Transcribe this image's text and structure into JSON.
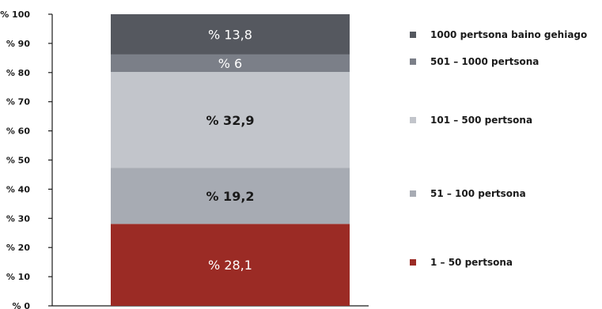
{
  "chart_data": {
    "type": "bar",
    "stacked": true,
    "title": "",
    "xlabel": "",
    "ylabel": "",
    "ylim": [
      0,
      100
    ],
    "y_ticks": [
      {
        "value": 0,
        "label": "% 0"
      },
      {
        "value": 10,
        "label": "% 10"
      },
      {
        "value": 20,
        "label": "% 20"
      },
      {
        "value": 30,
        "label": "% 30"
      },
      {
        "value": 40,
        "label": "% 40"
      },
      {
        "value": 50,
        "label": "% 50"
      },
      {
        "value": 60,
        "label": "% 60"
      },
      {
        "value": 70,
        "label": "% 70"
      },
      {
        "value": 80,
        "label": "% 80"
      },
      {
        "value": 90,
        "label": "% 90"
      },
      {
        "value": 100,
        "label": "% 100"
      }
    ],
    "grid": false,
    "legend_position": "right",
    "series": [
      {
        "name": "1 – 50 pertsona",
        "value": 28.1,
        "label": "% 28,1",
        "color": "#9b2b25",
        "label_color": "#ffffff"
      },
      {
        "name": "51 – 100 pertsona",
        "value": 19.2,
        "label": "% 19,2",
        "color": "#a7abb3",
        "label_color": "#1a1a1a"
      },
      {
        "name": "101 – 500 pertsona",
        "value": 32.9,
        "label": "% 32,9",
        "color": "#c2c5cb",
        "label_color": "#1a1a1a"
      },
      {
        "name": "501 – 1000 pertsona",
        "value": 6,
        "label": "% 6",
        "color": "#7b7f88",
        "label_color": "#ffffff"
      },
      {
        "name": "1000 pertsona baino gehiago",
        "value": 13.8,
        "label": "% 13,8",
        "color": "#55585f",
        "label_color": "#ffffff"
      }
    ]
  }
}
